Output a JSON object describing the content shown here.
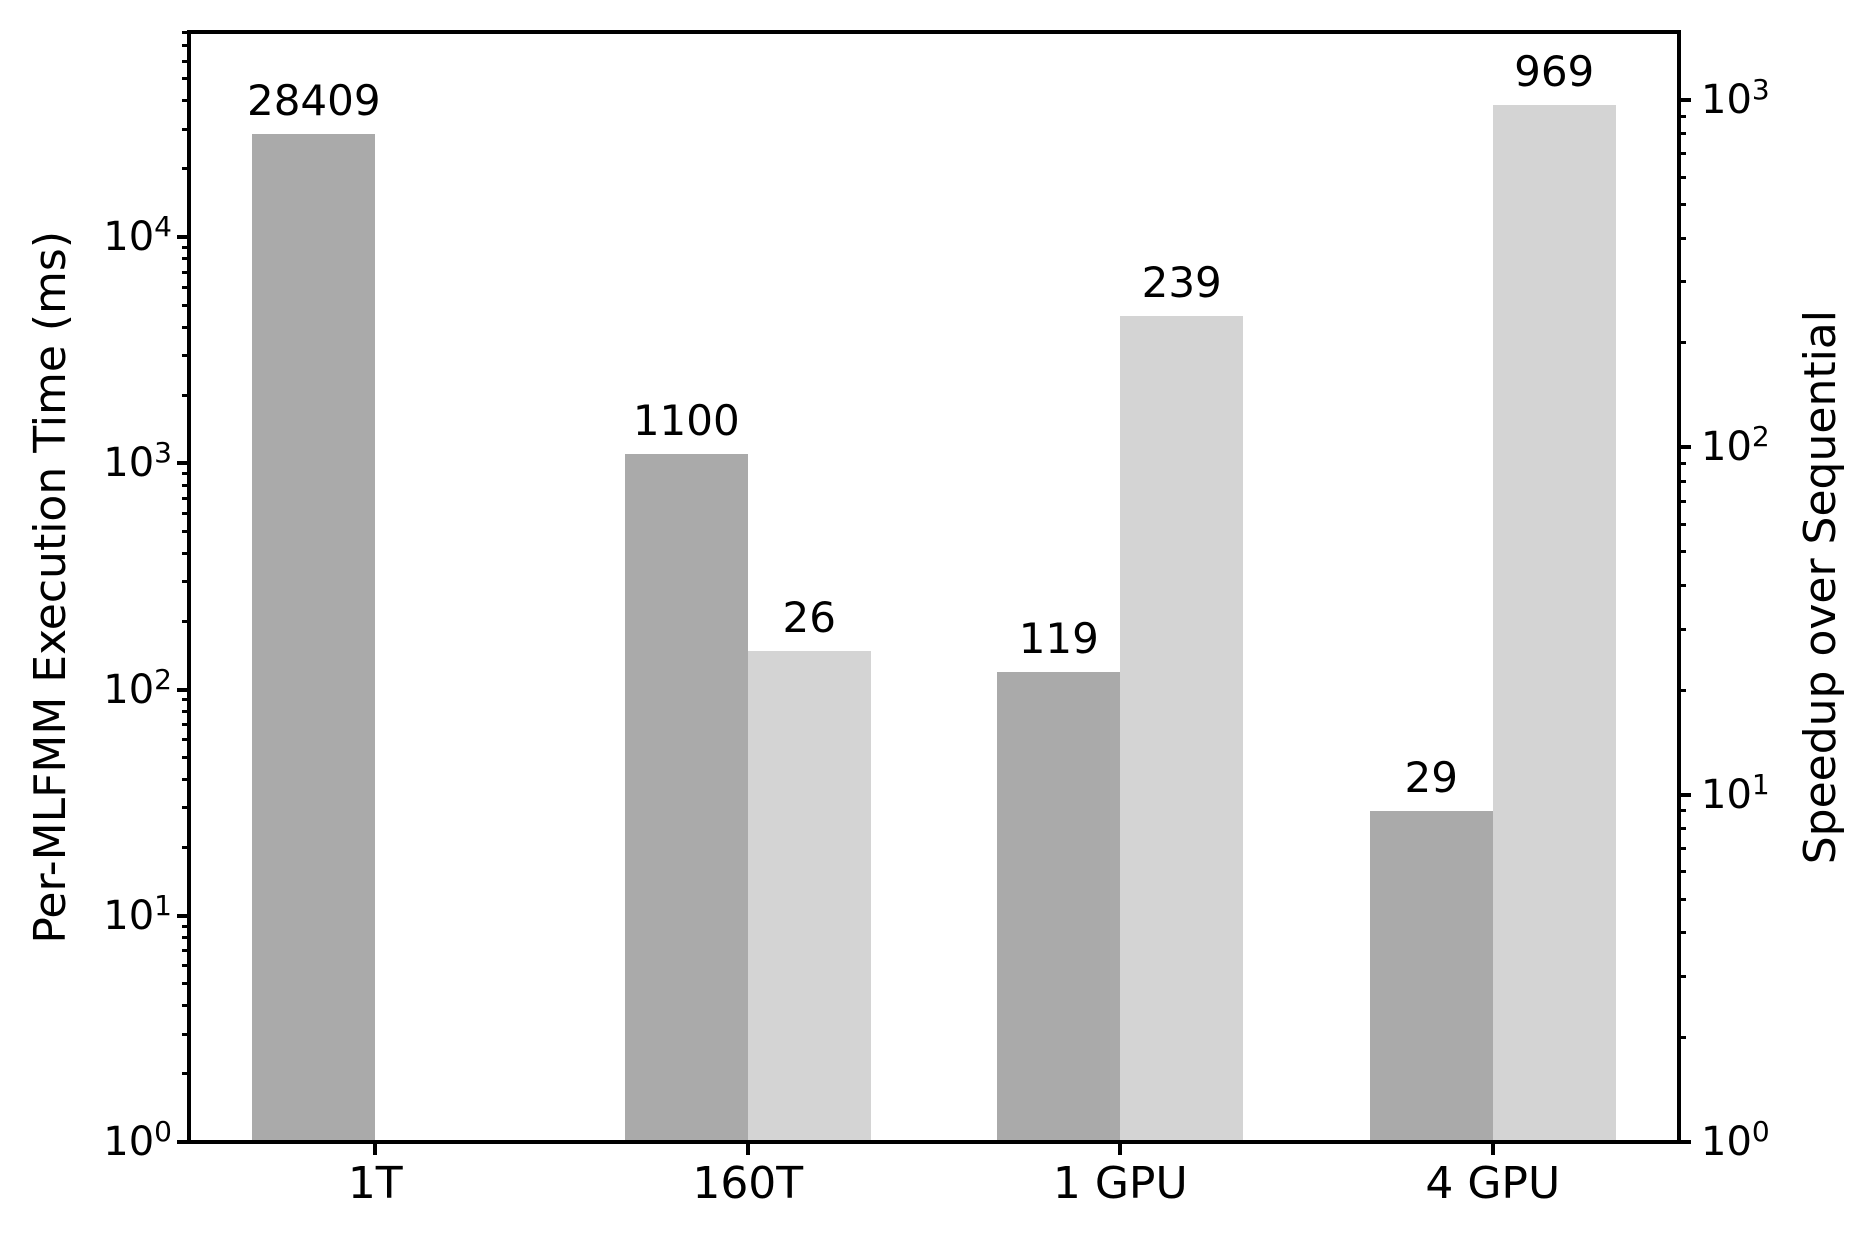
{
  "figure": {
    "background": "#ffffff",
    "text_color": "#000000"
  },
  "chart_data": {
    "type": "bar",
    "categories": [
      "1T",
      "160T",
      "1 GPU",
      "4 GPU"
    ],
    "series": [
      {
        "name": "Per-MLFMM Execution Time (ms)",
        "axis": "left",
        "color": "#aaaaaa",
        "values": [
          28409,
          1100,
          119,
          29
        ],
        "labels": [
          "28409",
          "1100",
          "119",
          "29"
        ]
      },
      {
        "name": "Speedup over Sequential",
        "axis": "right",
        "color": "#d4d4d4",
        "values": [
          null,
          26,
          239,
          969
        ],
        "labels": [
          null,
          "26",
          "239",
          "969"
        ]
      }
    ],
    "axes": {
      "left": {
        "label": "Per-MLFMM Execution Time (ms)",
        "scale": "log",
        "min": 1,
        "max": 80600,
        "tick_base": "10",
        "tick_exponents": [
          0,
          1,
          2,
          3,
          4
        ],
        "tick_labels": [
          "10^0",
          "10^1",
          "10^2",
          "10^3",
          "10^4"
        ]
      },
      "right": {
        "label": "Speedup over Sequential",
        "scale": "log",
        "min": 1,
        "max": 1571,
        "tick_base": "10",
        "tick_exponents": [
          0,
          1,
          2,
          3
        ],
        "tick_labels": [
          "10^0",
          "10^1",
          "10^2",
          "10^3"
        ]
      },
      "x": {
        "tick_labels": [
          "1T",
          "160T",
          "1 GPU",
          "4 GPU"
        ]
      }
    },
    "grid": false,
    "legend": null,
    "bar_width_fraction": 0.33
  }
}
